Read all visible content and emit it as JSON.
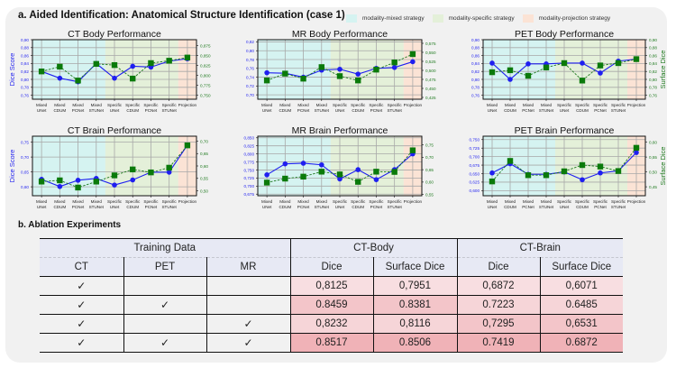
{
  "section_a_title": "a. Aided Identification: Anatomical Structure Identification (case 1)",
  "section_b_title": "b. Ablation Experiments",
  "legend": [
    {
      "label": "modality-mixed strategy",
      "color": "#d5f3f1"
    },
    {
      "label": "modality-specific strategy",
      "color": "#e4f0d9"
    },
    {
      "label": "modality-projection strategy",
      "color": "#fbe3d5"
    }
  ],
  "colors": {
    "dice_line": "#1f1ff0",
    "surface_line": "#1f7a1f",
    "surface_marker": "#0a7a0a",
    "grid": "#a8a8a8",
    "mixed_bg": "#d5f3f1",
    "specific_bg": "#e4f0d9",
    "projection_bg": "#fbe3d5"
  },
  "chart_data": [
    {
      "type": "line",
      "title": "CT Body Performance",
      "categories": [
        "Mixed\nUNet",
        "Mixed\nCDUM",
        "Mixed\nPCNet",
        "Mixed\nSTUNet",
        "Specific\nUNet",
        "Specific\nCDUM",
        "Specific\nPCNet",
        "Specific\nSTUNet",
        "Projection"
      ],
      "ylabel": "Dice Score",
      "y2label": "",
      "ylim": [
        0.75,
        0.9
      ],
      "yticks": [
        "0,76",
        "0,78",
        "0,80",
        "0,82",
        "0,84",
        "0,86",
        "0,88",
        "0,90"
      ],
      "yticks_vals": [
        0.76,
        0.78,
        0.8,
        0.82,
        0.84,
        0.86,
        0.88,
        0.9
      ],
      "y2lim": [
        0.74,
        0.89
      ],
      "y2ticks": [
        "0,750",
        "0,775",
        "0,800",
        "0,825",
        "0,850",
        "0,875",
        "0,900"
      ],
      "y2ticks_vals": [
        0.75,
        0.775,
        0.8,
        0.825,
        0.85,
        0.875,
        0.9
      ],
      "series": [
        {
          "name": "Dice",
          "axis": "left",
          "values": [
            0.82,
            0.803,
            0.794,
            0.84,
            0.803,
            0.833,
            0.831,
            0.846,
            0.852
          ]
        },
        {
          "name": "Surface Dice",
          "axis": "right",
          "values": [
            0.81,
            0.822,
            0.787,
            0.829,
            0.826,
            0.792,
            0.831,
            0.837,
            0.845
          ]
        }
      ],
      "regions": {
        "mixed": [
          0,
          3
        ],
        "specific": [
          4,
          7
        ],
        "projection": [
          8,
          8
        ]
      },
      "grid": true
    },
    {
      "type": "line",
      "title": "MR Body Performance",
      "categories": [
        "Mixed\nUNet",
        "Mixed\nCDUM",
        "Mixed\nPCNet",
        "Mixed\nSTUNet",
        "Specific\nUNet",
        "Specific\nCDUM",
        "Specific\nPCNet",
        "Specific\nSTUNet",
        "Projection"
      ],
      "ylabel": "",
      "y2label": "",
      "ylim": [
        0.69,
        0.825
      ],
      "yticks": [
        "0,70",
        "0,72",
        "0,74",
        "0,76",
        "0,78",
        "0,80",
        "0,82"
      ],
      "yticks_vals": [
        0.7,
        0.72,
        0.74,
        0.76,
        0.78,
        0.8,
        0.82
      ],
      "y2lim": [
        0.42,
        0.585
      ],
      "y2ticks": [
        "0,425",
        "0,450",
        "0,475",
        "0,500",
        "0,525",
        "0,550",
        "0,575"
      ],
      "y2ticks_vals": [
        0.425,
        0.45,
        0.475,
        0.5,
        0.525,
        0.55,
        0.575
      ],
      "series": [
        {
          "name": "Dice",
          "axis": "left",
          "values": [
            0.75,
            0.749,
            0.74,
            0.756,
            0.758,
            0.747,
            0.76,
            0.762,
            0.775
          ]
        },
        {
          "name": "Surface Dice",
          "axis": "right",
          "values": [
            0.472,
            0.491,
            0.477,
            0.509,
            0.484,
            0.472,
            0.502,
            0.522,
            0.545
          ]
        }
      ],
      "regions": {
        "mixed": [
          0,
          3
        ],
        "specific": [
          4,
          7
        ],
        "projection": [
          8,
          8
        ]
      },
      "grid": true
    },
    {
      "type": "line",
      "title": "PET Body Performance",
      "categories": [
        "Mixed\nUNet",
        "Mixed\nCDUM",
        "Mixed\nPCNet",
        "Mixed\nSTUNet",
        "Specific\nUNet",
        "Specific\nCDUM",
        "Specific\nPCNet",
        "Specific\nSTUNet",
        "Projection"
      ],
      "ylabel": "",
      "y2label": "Surface Dice",
      "ylim": [
        0.75,
        0.9
      ],
      "yticks": [
        "0,76",
        "0,78",
        "0,80",
        "0,82",
        "0,84",
        "0,86",
        "0,88",
        "0,90"
      ],
      "yticks_vals": [
        0.76,
        0.78,
        0.8,
        0.82,
        0.84,
        0.86,
        0.88,
        0.9
      ],
      "y2lim": [
        0.75,
        0.9
      ],
      "y2ticks": [
        "0,76",
        "0,78",
        "0,80",
        "0,82",
        "0,84",
        "0,86",
        "0,88",
        "0,90"
      ],
      "y2ticks_vals": [
        0.76,
        0.78,
        0.8,
        0.82,
        0.84,
        0.86,
        0.88,
        0.9
      ],
      "series": [
        {
          "name": "Dice",
          "axis": "left",
          "values": [
            0.841,
            0.8,
            0.839,
            0.839,
            0.841,
            0.841,
            0.816,
            0.846,
            0.851
          ]
        },
        {
          "name": "Surface Dice",
          "axis": "right",
          "values": [
            0.818,
            0.823,
            0.809,
            0.83,
            0.841,
            0.797,
            0.835,
            0.841,
            0.851
          ]
        }
      ],
      "regions": {
        "mixed": [
          0,
          3
        ],
        "specific": [
          4,
          7
        ],
        "projection": [
          8,
          8
        ]
      },
      "grid": true
    },
    {
      "type": "line",
      "title": "CT Brain Performance",
      "categories": [
        "Mixed\nUNet",
        "Mixed\nCDUM",
        "Mixed\nPCNet",
        "Mixed\nSTUNet",
        "Specific\nUNet",
        "Specific\nCDUM",
        "Specific\nPCNet",
        "Specific\nSTUNet",
        "Projection"
      ],
      "ylabel": "Dice Score",
      "y2label": "",
      "ylim": [
        0.57,
        0.77
      ],
      "yticks": [
        "0,60",
        "0,65",
        "0,70",
        "0,75"
      ],
      "yticks_vals": [
        0.6,
        0.65,
        0.7,
        0.75
      ],
      "y2lim": [
        0.48,
        0.72
      ],
      "y2ticks": [
        "0,50",
        "0,55",
        "0,60",
        "0,65",
        "0,70"
      ],
      "y2ticks_vals": [
        0.5,
        0.55,
        0.6,
        0.65,
        0.7
      ],
      "series": [
        {
          "name": "Dice",
          "axis": "left",
          "values": [
            0.625,
            0.601,
            0.622,
            0.628,
            0.606,
            0.623,
            0.649,
            0.649,
            0.74
          ]
        },
        {
          "name": "Surface Dice",
          "axis": "right",
          "values": [
            0.537,
            0.542,
            0.513,
            0.537,
            0.562,
            0.586,
            0.574,
            0.593,
            0.683
          ]
        }
      ],
      "regions": {
        "mixed": [
          0,
          3
        ],
        "specific": [
          4,
          7
        ],
        "projection": [
          8,
          8
        ]
      },
      "grid": true
    },
    {
      "type": "line",
      "title": "MR Brain Performance",
      "categories": [
        "Mixed\nUNet",
        "Mixed\nCDUM",
        "Mixed\nPCNet",
        "Mixed\nSTUNet",
        "Specific\nUNet",
        "Specific\nCDUM",
        "Specific\nPCNet",
        "Specific\nSTUNet",
        "Projection"
      ],
      "ylabel": "",
      "y2label": "",
      "ylim": [
        0.67,
        0.855
      ],
      "yticks": [
        "0,675",
        "0,700",
        "0,725",
        "0,750",
        "0,775",
        "0,800",
        "0,825",
        "0,850"
      ],
      "yticks_vals": [
        0.675,
        0.7,
        0.725,
        0.75,
        0.775,
        0.8,
        0.825,
        0.85
      ],
      "y2lim": [
        0.545,
        0.785
      ],
      "y2ticks": [
        "0,55",
        "0,60",
        "0,65",
        "0,70",
        "0,75"
      ],
      "y2ticks_vals": [
        0.55,
        0.6,
        0.65,
        0.7,
        0.75
      ],
      "series": [
        {
          "name": "Dice",
          "axis": "left",
          "values": [
            0.735,
            0.769,
            0.771,
            0.766,
            0.722,
            0.751,
            0.72,
            0.751,
            0.8
          ]
        },
        {
          "name": "Surface Dice",
          "axis": "right",
          "values": [
            0.598,
            0.614,
            0.622,
            0.642,
            0.631,
            0.601,
            0.642,
            0.641,
            0.728
          ]
        }
      ],
      "regions": {
        "mixed": [
          0,
          3
        ],
        "specific": [
          4,
          7
        ],
        "projection": [
          8,
          8
        ]
      },
      "grid": true
    },
    {
      "type": "line",
      "title": "PET Brain Performance",
      "categories": [
        "Mixed\nUNet",
        "Mixed\nCDUM",
        "Mixed\nPCNet",
        "Mixed\nSTUNet",
        "Specific\nUNet",
        "Specific\nCDUM",
        "Specific\nPCNet",
        "Specific\nSTUNet",
        "Projection"
      ],
      "ylabel": "",
      "y2label": "Surface Dice",
      "ylim": [
        0.585,
        0.76
      ],
      "yticks": [
        "0,600",
        "0,625",
        "0,650",
        "0,675",
        "0,700",
        "0,725",
        "0,750"
      ],
      "yticks_vals": [
        0.6,
        0.625,
        0.65,
        0.675,
        0.7,
        0.725,
        0.75
      ],
      "y2lim": [
        0.42,
        0.62
      ],
      "y2ticks": [
        "0,45",
        "0,50",
        "0,55",
        "0,60"
      ],
      "y2ticks_vals": [
        0.45,
        0.5,
        0.55,
        0.6
      ],
      "series": [
        {
          "name": "Dice",
          "axis": "left",
          "values": [
            0.652,
            0.679,
            0.648,
            0.648,
            0.655,
            0.632,
            0.652,
            0.658,
            0.712
          ]
        },
        {
          "name": "Surface Dice",
          "axis": "right",
          "values": [
            0.468,
            0.537,
            0.489,
            0.489,
            0.502,
            0.523,
            0.518,
            0.503,
            0.581
          ]
        }
      ],
      "regions": {
        "mixed": [
          0,
          3
        ],
        "specific": [
          4,
          7
        ],
        "projection": [
          8,
          8
        ]
      },
      "grid": true
    }
  ],
  "table": {
    "group_headers": [
      "Training Data",
      "CT-Body",
      "CT-Brain"
    ],
    "sub_headers": [
      "CT",
      "PET",
      "MR",
      "Dice",
      "Surface Dice",
      "Dice",
      "Surface Dice"
    ],
    "check_symbol": "✓",
    "rows": [
      {
        "ct": true,
        "pet": false,
        "mr": false,
        "values": [
          "0,8125",
          "0,7951",
          "0,6872",
          "0,6071"
        ],
        "shades": [
          0.15,
          0.15,
          0.15,
          0.15
        ]
      },
      {
        "ct": true,
        "pet": true,
        "mr": false,
        "values": [
          "0.8459",
          "0.8381",
          "0.7223",
          "0.6485"
        ],
        "shades": [
          0.55,
          0.55,
          0.3,
          0.3
        ]
      },
      {
        "ct": true,
        "pet": false,
        "mr": true,
        "values": [
          "0,8232",
          "0,8116",
          "0,7295",
          "0,6531"
        ],
        "shades": [
          0.3,
          0.3,
          0.55,
          0.55
        ]
      },
      {
        "ct": true,
        "pet": true,
        "mr": true,
        "values": [
          "0.8517",
          "0.8506",
          "0.7419",
          "0.6872"
        ],
        "shades": [
          0.85,
          0.85,
          0.85,
          0.85
        ]
      }
    ]
  }
}
